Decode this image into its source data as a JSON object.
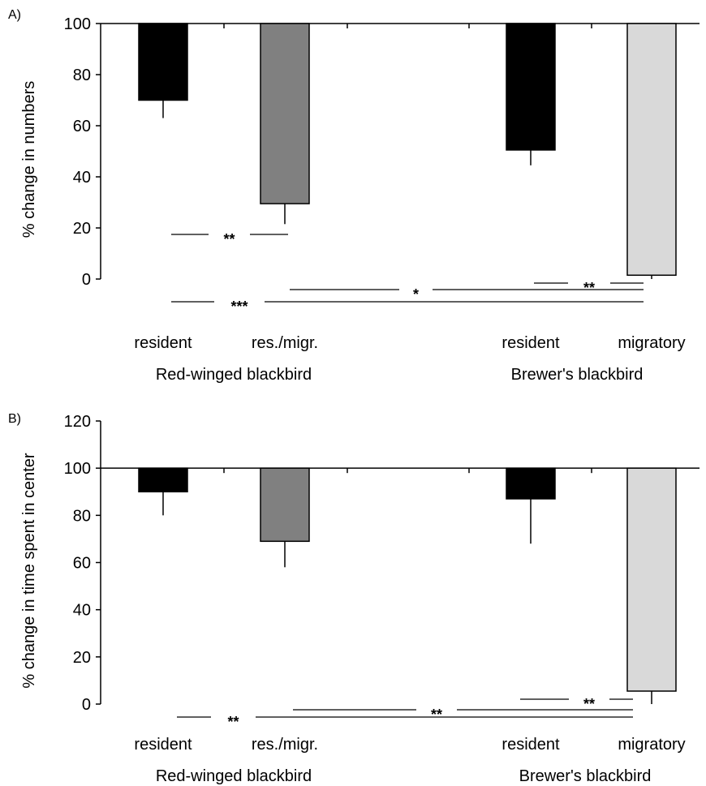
{
  "chart_data": [
    {
      "panel": "A)",
      "type": "bar",
      "ylabel": "% change in numbers",
      "ylim": [
        0,
        100
      ],
      "yticks": [
        0,
        20,
        40,
        60,
        80,
        100
      ],
      "baseline": 100,
      "categories": [
        "resident",
        "res./migr.",
        "resident",
        "migratory"
      ],
      "groups": [
        {
          "label": "Red-winged blackbird",
          "categories": [
            0,
            1
          ]
        },
        {
          "label": "Brewer's blackbird",
          "categories": [
            2,
            3
          ]
        }
      ],
      "bars": [
        {
          "category": "resident",
          "group": "Red-winged blackbird",
          "value": 70,
          "error": 7,
          "color": "#000000"
        },
        {
          "category": "res./migr.",
          "group": "Red-winged blackbird",
          "value": 29.5,
          "error": 8,
          "color": "#808080"
        },
        {
          "category": "resident",
          "group": "Brewer's blackbird",
          "value": 50.5,
          "error": 6,
          "color": "#000000"
        },
        {
          "category": "migratory",
          "group": "Brewer's blackbird",
          "value": 1.5,
          "error": 1.5,
          "color": "#d9d9d9"
        }
      ],
      "significance": [
        {
          "from": 0,
          "to": 1,
          "label": "**"
        },
        {
          "from": 1,
          "to": 3,
          "label": "*"
        },
        {
          "from": 2,
          "to": 3,
          "label": "**"
        },
        {
          "from": 0,
          "to": 3,
          "label": "***"
        }
      ]
    },
    {
      "panel": "B)",
      "type": "bar",
      "ylabel": "% change in time spent in center",
      "ylim": [
        0,
        120
      ],
      "yticks": [
        0,
        20,
        40,
        60,
        80,
        100,
        120
      ],
      "baseline": 100,
      "categories": [
        "resident",
        "res./migr.",
        "resident",
        "migratory"
      ],
      "groups": [
        {
          "label": "Red-winged blackbird",
          "categories": [
            0,
            1
          ]
        },
        {
          "label": "Brewer's blackbird",
          "categories": [
            2,
            3
          ]
        }
      ],
      "bars": [
        {
          "category": "resident",
          "group": "Red-winged blackbird",
          "value": 90,
          "error": 10,
          "color": "#000000"
        },
        {
          "category": "res./migr.",
          "group": "Red-winged blackbird",
          "value": 69,
          "error": 11,
          "color": "#808080"
        },
        {
          "category": "resident",
          "group": "Brewer's blackbird",
          "value": 87,
          "error": 19,
          "color": "#000000"
        },
        {
          "category": "migratory",
          "group": "Brewer's blackbird",
          "value": 5.5,
          "error": 5.5,
          "color": "#d9d9d9"
        }
      ],
      "significance": [
        {
          "from": 1,
          "to": 3,
          "label": "**"
        },
        {
          "from": 2,
          "to": 3,
          "label": "**"
        },
        {
          "from": 0,
          "to": 3,
          "label": "**"
        }
      ]
    }
  ]
}
